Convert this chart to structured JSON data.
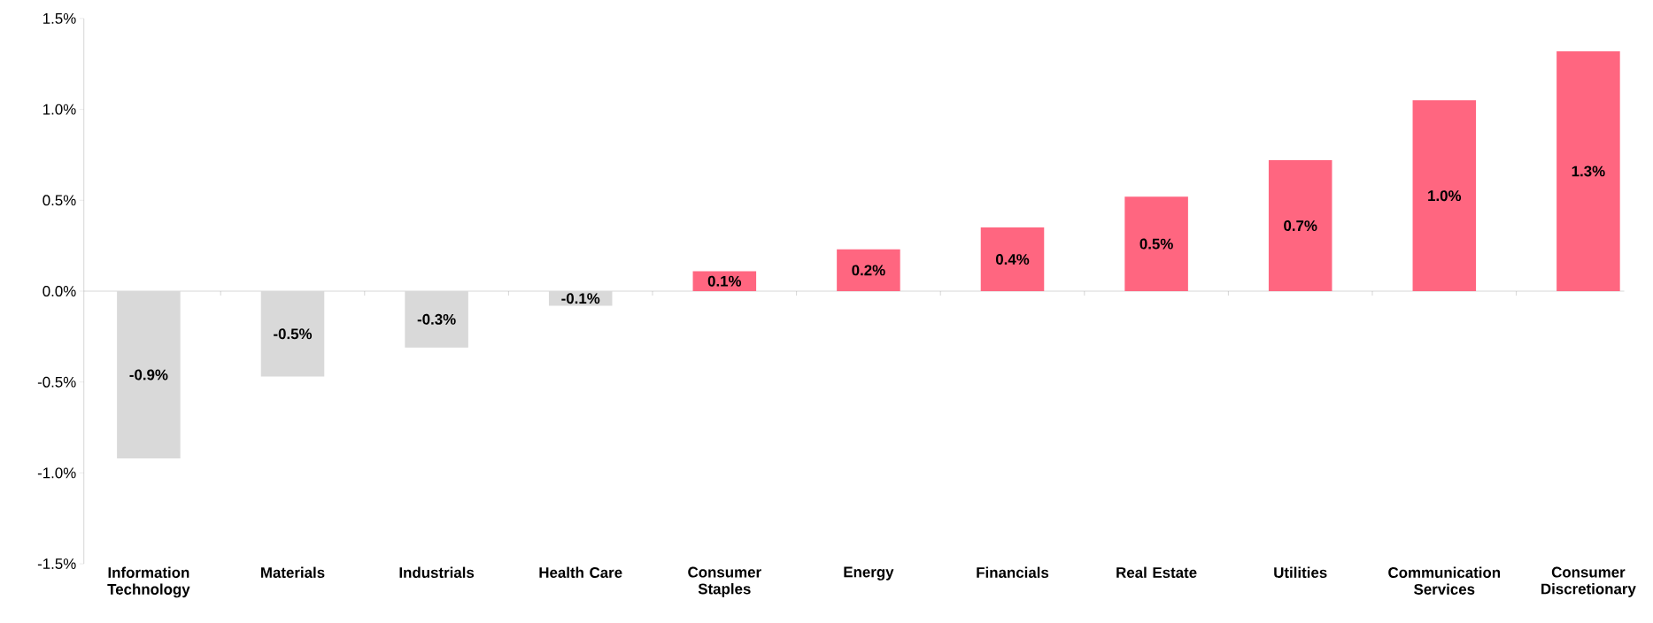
{
  "chart_data": {
    "type": "bar",
    "categories": [
      "Information Technology",
      "Materials",
      "Industrials",
      "Health Care",
      "Consumer Staples",
      "Energy",
      "Financials",
      "Real Estate",
      "Utilities",
      "Communication Services",
      "Consumer Discretionary"
    ],
    "values": [
      -0.92,
      -0.47,
      -0.31,
      -0.08,
      0.11,
      0.23,
      0.35,
      0.52,
      0.72,
      1.05,
      1.32
    ],
    "colors": [
      "#d9d9d9",
      "#d9d9d9",
      "#d9d9d9",
      "#d9d9d9",
      "#ff6680",
      "#ff6680",
      "#ff6680",
      "#ff6680",
      "#ff6680",
      "#ff6680",
      "#ff6680"
    ],
    "value_labels": [
      "-0.9%",
      "-0.5%",
      "-0.3%",
      "-0.1%",
      "0.1%",
      "0.2%",
      "0.4%",
      "0.5%",
      "0.7%",
      "1.0%",
      "1.3%"
    ],
    "yticks": [
      {
        "value": -1.5,
        "label": "-1.5%"
      },
      {
        "value": -1.0,
        "label": "-1.0%"
      },
      {
        "value": -0.5,
        "label": "-0.5%"
      },
      {
        "value": 0.0,
        "label": "0.0%"
      },
      {
        "value": 0.5,
        "label": "0.5%"
      },
      {
        "value": 1.0,
        "label": "1.0%"
      },
      {
        "value": 1.5,
        "label": "1.5%"
      }
    ],
    "ylim": [
      -1.5,
      1.5
    ]
  }
}
